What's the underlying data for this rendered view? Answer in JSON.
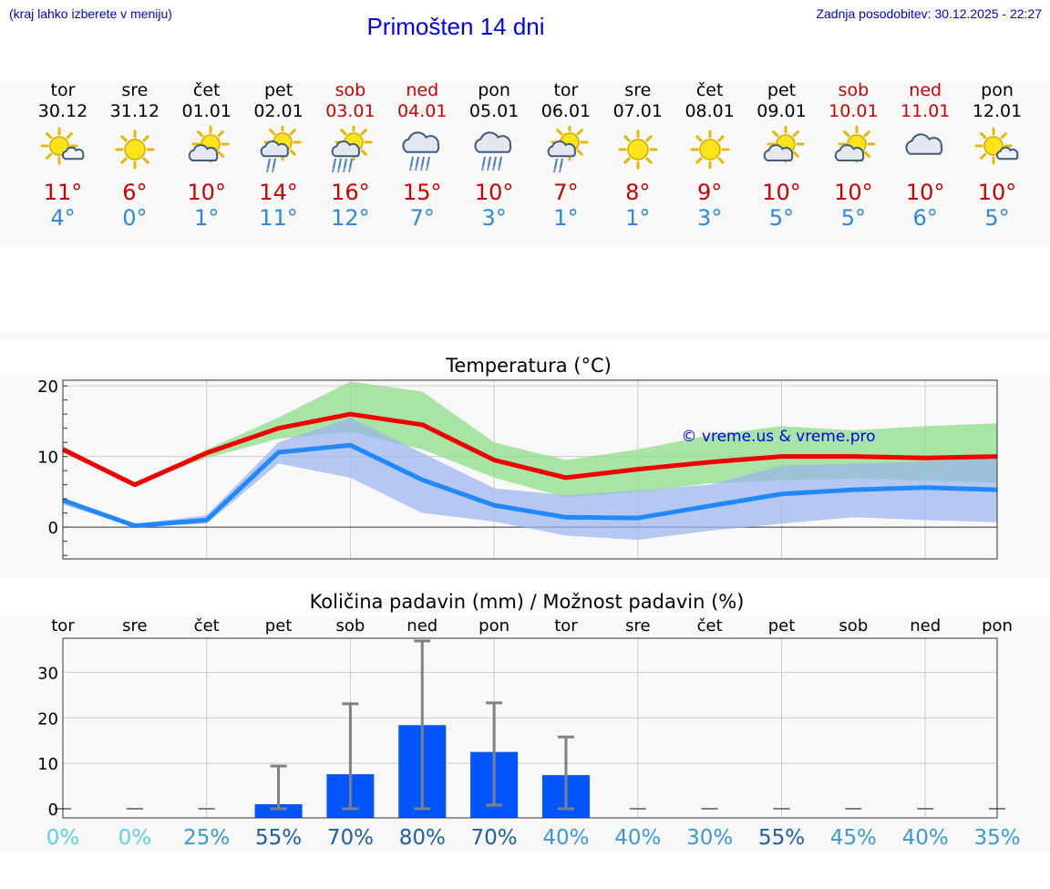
{
  "header": {
    "menu_hint": "(kraj lahko izberete v meniju)",
    "title": "Primošten 14 dni",
    "updated": "Zadnja posodobitev: 30.12.2025 - 22:27"
  },
  "days": [
    {
      "name": "tor",
      "date": "30.12",
      "icon": "sun-small-cloud-icon",
      "max": "11°",
      "min": "4°",
      "weekend": false
    },
    {
      "name": "sre",
      "date": "31.12",
      "icon": "sun-icon",
      "max": "6°",
      "min": "0°",
      "weekend": false
    },
    {
      "name": "čet",
      "date": "01.01",
      "icon": "sun-behind-cloud-icon",
      "max": "10°",
      "min": "1°",
      "weekend": false
    },
    {
      "name": "pet",
      "date": "02.01",
      "icon": "sun-cloud-light-rain-icon",
      "max": "14°",
      "min": "11°",
      "weekend": false
    },
    {
      "name": "sob",
      "date": "03.01",
      "icon": "sun-cloud-rain-icon",
      "max": "16°",
      "min": "12°",
      "weekend": true
    },
    {
      "name": "ned",
      "date": "04.01",
      "icon": "cloud-rain-icon",
      "max": "15°",
      "min": "7°",
      "weekend": true
    },
    {
      "name": "pon",
      "date": "05.01",
      "icon": "cloud-rain-icon",
      "max": "10°",
      "min": "3°",
      "weekend": false
    },
    {
      "name": "tor",
      "date": "06.01",
      "icon": "sun-cloud-light-rain-icon",
      "max": "7°",
      "min": "1°",
      "weekend": false
    },
    {
      "name": "sre",
      "date": "07.01",
      "icon": "sun-icon",
      "max": "8°",
      "min": "1°",
      "weekend": false
    },
    {
      "name": "čet",
      "date": "08.01",
      "icon": "sun-icon",
      "max": "9°",
      "min": "3°",
      "weekend": false
    },
    {
      "name": "pet",
      "date": "09.01",
      "icon": "sun-behind-cloud-icon",
      "max": "10°",
      "min": "5°",
      "weekend": false
    },
    {
      "name": "sob",
      "date": "10.01",
      "icon": "sun-behind-cloud-icon",
      "max": "10°",
      "min": "5°",
      "weekend": true
    },
    {
      "name": "ned",
      "date": "11.01",
      "icon": "cloud-icon",
      "max": "10°",
      "min": "6°",
      "weekend": true
    },
    {
      "name": "pon",
      "date": "12.01",
      "icon": "sun-small-cloud-icon",
      "max": "10°",
      "min": "5°",
      "weekend": false
    }
  ],
  "colors": {
    "max_line": "#ee0000",
    "min_line": "#2288ff",
    "max_band": "#8ede88",
    "min_band": "#99b4ee",
    "bar": "#0055ff",
    "weekend": "#cc0000",
    "max_text": "#cc0000",
    "min_text": "#2a8ae0",
    "link": "#0000ee"
  },
  "chart_data": [
    {
      "type": "line",
      "title": "Temperatura (°C)",
      "xlabel": "",
      "ylabel": "",
      "ylim": [
        -4.5,
        20.8
      ],
      "yticks": [
        0,
        10,
        20
      ],
      "categories": [
        "tor",
        "sre",
        "čet",
        "pet",
        "sob",
        "ned",
        "pon",
        "tor",
        "sre",
        "čet",
        "pet",
        "sob",
        "ned",
        "pon"
      ],
      "grid": true,
      "annotation": "© vreme.us & vreme.pro",
      "series": [
        {
          "name": "max",
          "values": [
            11,
            6,
            10.5,
            14,
            16,
            14.5,
            9.5,
            7,
            8.2,
            9.2,
            10,
            10,
            9.8,
            10
          ]
        },
        {
          "name": "min",
          "values": [
            3.8,
            0.2,
            1,
            10.6,
            11.6,
            6.7,
            3.1,
            1.4,
            1.3,
            3,
            4.7,
            5.3,
            5.6,
            5.3
          ]
        },
        {
          "name": "max-range-high",
          "values": [
            11.5,
            6,
            11,
            15.5,
            20.6,
            19.2,
            12,
            9.5,
            11,
            13,
            14.3,
            13.7,
            14.3,
            14.7
          ]
        },
        {
          "name": "max-range-low",
          "values": [
            10.5,
            6,
            9.8,
            12.5,
            13.5,
            11,
            7,
            4.2,
            5,
            6.2,
            6.6,
            6.9,
            6.6,
            6.3
          ]
        },
        {
          "name": "min-range-high",
          "values": [
            4.2,
            0.4,
            1.7,
            12,
            15.5,
            10.5,
            5.5,
            4.5,
            5.2,
            6,
            8.7,
            9,
            9.3,
            9.8
          ]
        },
        {
          "name": "min-range-low",
          "values": [
            3.2,
            0,
            0.5,
            9,
            7,
            2,
            0.8,
            -1.2,
            -1.8,
            -0.5,
            0.5,
            1.4,
            1,
            0.7
          ]
        }
      ]
    },
    {
      "type": "bar",
      "title": "Količina padavin (mm) / Možnost padavin (%)",
      "xlabel": "",
      "ylabel": "",
      "ylim": [
        -2,
        37.5
      ],
      "yticks": [
        0,
        10,
        20,
        30
      ],
      "categories": [
        "tor",
        "sre",
        "čet",
        "pet",
        "sob",
        "ned",
        "pon",
        "tor",
        "sre",
        "čet",
        "pet",
        "sob",
        "ned",
        "pon"
      ],
      "values": [
        0,
        0,
        0,
        1,
        7.6,
        18.4,
        12.5,
        7.4,
        0,
        0,
        0,
        0,
        0,
        0
      ],
      "error_high": [
        0,
        0,
        0,
        9.4,
        23.1,
        36.9,
        23.3,
        15.8,
        0,
        0,
        0,
        0,
        0,
        0
      ],
      "error_low": [
        0,
        0,
        0,
        0,
        0,
        0,
        0.8,
        0,
        0,
        0,
        0,
        0,
        0,
        0
      ],
      "probability": [
        "0%",
        "0%",
        "25%",
        "55%",
        "70%",
        "80%",
        "70%",
        "40%",
        "40%",
        "30%",
        "55%",
        "45%",
        "40%",
        "35%"
      ],
      "probability_colors": [
        "#5cd2e6",
        "#5cd2e6",
        "#3a9ad6",
        "#1b5fa8",
        "#1b5fa8",
        "#1b5fa8",
        "#1b5fa8",
        "#3a9ad6",
        "#3a9ad6",
        "#3a9ad6",
        "#1b5fa8",
        "#3a9ad6",
        "#3a9ad6",
        "#3a9ad6"
      ],
      "grid": true
    }
  ]
}
